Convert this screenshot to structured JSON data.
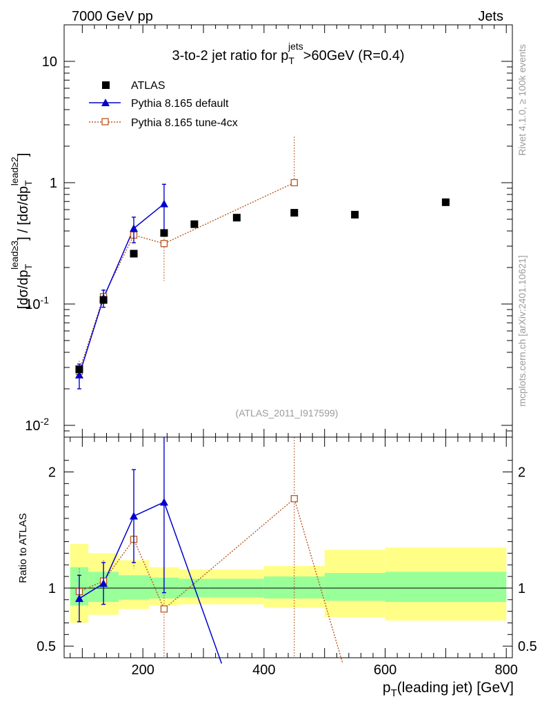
{
  "header": {
    "left": "7000 GeV pp",
    "right": "Jets"
  },
  "side_labels": {
    "rivet": "Rivet 4.1.0, ≥ 100k events",
    "mcplots": "mcplots.cern.ch [arXiv:2401.10621]"
  },
  "watermark": "(ATLAS_2011_I917599)",
  "colors": {
    "atlas": "#000000",
    "pythia_default": "#0000cc",
    "pythia_tune": "#b8561e",
    "band_inner": "#99ff99",
    "band_outer": "#ffff88"
  },
  "chart_data": [
    {
      "type": "scatter",
      "panel": "main",
      "title": "3-to-2 jet ratio for p_T^jets >60GeV (R=0.4)",
      "title_parts": {
        "pre": "3-to-2 jet ratio for p",
        "sub": "T",
        "sup": "jets",
        "post": ">60GeV (R=0.4)"
      },
      "ylabel": "[dσ/dp_T^lead≥3] / [dσ/dp_T^lead≥2]",
      "ylabel_parts": {
        "a": "[dσ/dp",
        "sub1": "T",
        "sup1": "lead≥3",
        "b": "] / [dσ/dp",
        "sub2": "T",
        "sup2": "lead≥2",
        "c": "]"
      },
      "yscale": "log",
      "ylim": [
        0.008,
        20
      ],
      "xlim": [
        70,
        810
      ],
      "yticks": [
        {
          "v": 0.01,
          "base": "10",
          "exp": "-2"
        },
        {
          "v": 0.1,
          "base": "10",
          "exp": "-1"
        },
        {
          "v": 1,
          "base": "1",
          "exp": ""
        },
        {
          "v": 10,
          "base": "10",
          "exp": ""
        }
      ],
      "legend_position": "top-left",
      "series": [
        {
          "name": "ATLAS",
          "marker": "square-filled",
          "x": [
            95,
            135,
            185,
            235,
            285,
            355,
            450,
            550,
            700
          ],
          "y": [
            0.029,
            0.108,
            0.26,
            0.385,
            0.455,
            0.515,
            0.565,
            0.545,
            0.69
          ],
          "yerr": [
            0.002,
            0.005,
            0.012,
            0.02,
            0.02,
            0.02,
            0.03,
            0.03,
            0.04
          ]
        },
        {
          "name": "Pythia 8.165 default",
          "marker": "triangle-filled",
          "line": "solid",
          "x": [
            95,
            135,
            185,
            235
          ],
          "y": [
            0.026,
            0.112,
            0.42,
            0.67
          ],
          "yerr": [
            0.006,
            0.018,
            0.1,
            0.3
          ]
        },
        {
          "name": "Pythia 8.165 tune-4cx",
          "marker": "square-open",
          "line": "dotted",
          "x": [
            95,
            135,
            185,
            235,
            450
          ],
          "y": [
            0.028,
            0.115,
            0.37,
            0.315,
            1.0
          ],
          "yerr_low": [
            0.006,
            0.02,
            0.06,
            0.16,
            0.0
          ],
          "yerr_high": [
            0.006,
            0.02,
            0.08,
            0.16,
            1.45
          ]
        }
      ]
    },
    {
      "type": "ratio",
      "panel": "ratio",
      "ylabel": "Ratio to ATLAS",
      "xlabel": "p_T(leading jet) [GeV]",
      "xlabel_parts": {
        "a": "p",
        "sub": "T",
        "b": "(leading jet) [GeV]"
      },
      "ylim": [
        0.4,
        2.3
      ],
      "xlim": [
        70,
        810
      ],
      "reference_line": 1,
      "yticks": [
        {
          "v": 0.5,
          "label": "0.5"
        },
        {
          "v": 1,
          "label": "1"
        },
        {
          "v": 2,
          "label": "2"
        }
      ],
      "xticks": [
        {
          "v": 200,
          "label": "200"
        },
        {
          "v": 400,
          "label": "400"
        },
        {
          "v": 600,
          "label": "600"
        },
        {
          "v": 800,
          "label": "800"
        }
      ],
      "uncertainty_bins": [
        {
          "xlo": 80,
          "xhi": 110,
          "inner": [
            0.85,
            1.18
          ],
          "outer": [
            0.7,
            1.38
          ]
        },
        {
          "xlo": 110,
          "xhi": 160,
          "inner": [
            0.88,
            1.14
          ],
          "outer": [
            0.77,
            1.3
          ]
        },
        {
          "xlo": 160,
          "xhi": 210,
          "inner": [
            0.9,
            1.11
          ],
          "outer": [
            0.82,
            1.24
          ]
        },
        {
          "xlo": 210,
          "xhi": 260,
          "inner": [
            0.91,
            1.09
          ],
          "outer": [
            0.85,
            1.18
          ]
        },
        {
          "xlo": 260,
          "xhi": 310,
          "inner": [
            0.92,
            1.08
          ],
          "outer": [
            0.86,
            1.16
          ]
        },
        {
          "xlo": 310,
          "xhi": 400,
          "inner": [
            0.92,
            1.08
          ],
          "outer": [
            0.86,
            1.16
          ]
        },
        {
          "xlo": 400,
          "xhi": 500,
          "inner": [
            0.91,
            1.1
          ],
          "outer": [
            0.83,
            1.19
          ]
        },
        {
          "xlo": 500,
          "xhi": 600,
          "inner": [
            0.89,
            1.13
          ],
          "outer": [
            0.75,
            1.33
          ]
        },
        {
          "xlo": 600,
          "xhi": 800,
          "inner": [
            0.88,
            1.14
          ],
          "outer": [
            0.72,
            1.35
          ]
        }
      ],
      "series": [
        {
          "name": "Pythia 8.165 default",
          "marker": "triangle-filled",
          "line": "solid",
          "x": [
            95,
            135,
            185,
            235,
            330
          ],
          "y": [
            0.91,
            1.04,
            1.62,
            1.74,
            0.35
          ],
          "yerr": [
            0.2,
            0.18,
            0.4,
            0.78,
            0
          ],
          "marker_count": 4
        },
        {
          "name": "Pythia 8.165 tune-4cx",
          "marker": "square-open",
          "line": "dotted",
          "x": [
            95,
            135,
            185,
            235,
            450,
            530
          ],
          "y": [
            0.97,
            1.06,
            1.42,
            0.82,
            1.77,
            0.35
          ],
          "yerr_low": [
            0.2,
            0.18,
            0.25,
            0.6,
            1.6,
            0
          ],
          "yerr_high": [
            0.2,
            0.18,
            0.3,
            0.6,
            0.6,
            0
          ],
          "marker_count": 5
        }
      ]
    }
  ]
}
